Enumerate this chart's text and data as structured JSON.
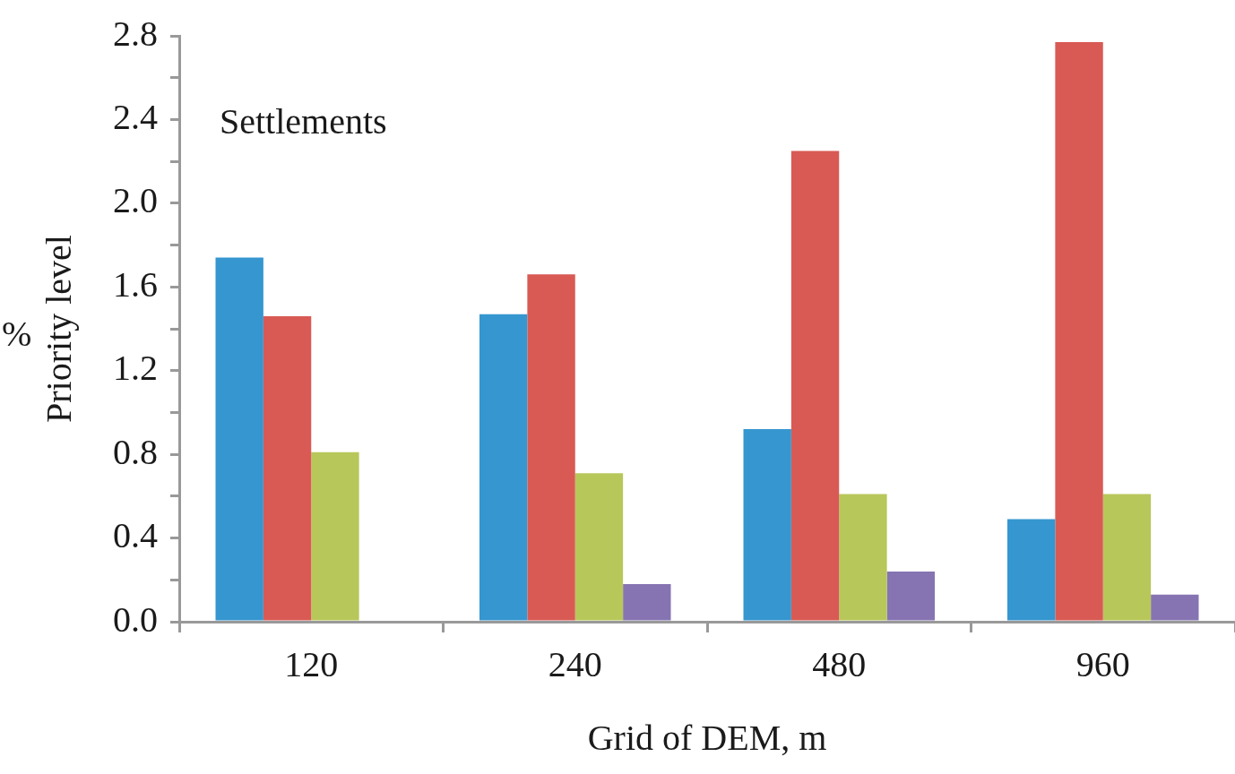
{
  "chart_data": {
    "type": "bar",
    "xlabel": "Grid of DEM, m",
    "ylabel": "Priority level",
    "categories": [
      "120",
      "240",
      "480",
      "960"
    ],
    "series": [
      {
        "color": "#3696cf",
        "values": [
          1.74,
          1.47,
          0.92,
          0.49
        ]
      },
      {
        "color": "#d95a54",
        "values": [
          1.46,
          1.66,
          2.25,
          2.77
        ]
      },
      {
        "color": "#b8c75a",
        "values": [
          0.81,
          0.71,
          0.61,
          0.61
        ]
      },
      {
        "color": "#8674b2",
        "values": [
          0,
          0.18,
          0.24,
          0.13
        ]
      }
    ],
    "ylim": [
      0,
      2.8
    ],
    "yticks": [
      {
        "value": 0,
        "label": "0.0"
      },
      {
        "value": 0.2,
        "label": null
      },
      {
        "value": 0.4,
        "label": "0.4"
      },
      {
        "value": 0.6,
        "label": null
      },
      {
        "value": 0.8,
        "label": "0.8"
      },
      {
        "value": 1.0,
        "label": null
      },
      {
        "value": 1.2,
        "label": "1.2"
      },
      {
        "value": 1.4,
        "label": null
      },
      {
        "value": 1.6,
        "label": "1.6"
      },
      {
        "value": 1.8,
        "label": null
      },
      {
        "value": 2.0,
        "label": "2.0"
      },
      {
        "value": 2.2,
        "label": null
      },
      {
        "value": 2.4,
        "label": "2.4"
      },
      {
        "value": 2.6,
        "label": null
      },
      {
        "value": 2.8,
        "label": "2.8"
      }
    ],
    "grid": false,
    "legend": false,
    "annotations": [
      "Settlements",
      "%"
    ]
  }
}
